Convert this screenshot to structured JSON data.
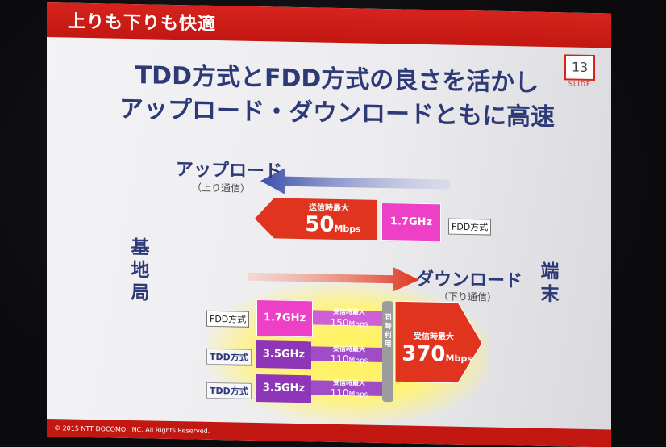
{
  "slide": {
    "header": "上りも下りも快適",
    "number": "13",
    "number_word": "SLIDE",
    "headline_line1": "TDD方式とFDD方式の良さを活かし",
    "headline_line2": "アップロード・ダウンロードともに高速",
    "station": "基地局",
    "terminal": "端末",
    "upload": {
      "label": "アップロード",
      "sub": "（上り通信）",
      "max_label": "送信時最大",
      "max_value": "50",
      "unit": "Mbps",
      "band": "1.7GHz",
      "mode": "FDD方式"
    },
    "download": {
      "label": "ダウンロード",
      "sub": "（下り通信）",
      "rows": [
        {
          "mode": "FDD方式",
          "band": "1.7GHz",
          "max_label": "受信時最大",
          "value": "150",
          "unit": "Mbps"
        },
        {
          "mode": "TDD方式",
          "band": "3.5GHz",
          "max_label": "受信時最大",
          "value": "110",
          "unit": "Mbps"
        },
        {
          "mode": "TDD方式",
          "band": "3.5GHz",
          "max_label": "受信時最大",
          "value": "110",
          "unit": "Mbps"
        }
      ],
      "sim_use": "同時利用",
      "total_label": "受信時最大",
      "total_value": "370",
      "total_unit": "Mbps"
    },
    "copyright": "© 2015 NTT DOCOMO, INC. All Rights Reserved."
  },
  "colors": {
    "red": "#d7231d",
    "pink": "#ee3fc7",
    "purple": "#8f35b8",
    "navy": "#2d3a77",
    "highlight": "#fff25a"
  }
}
